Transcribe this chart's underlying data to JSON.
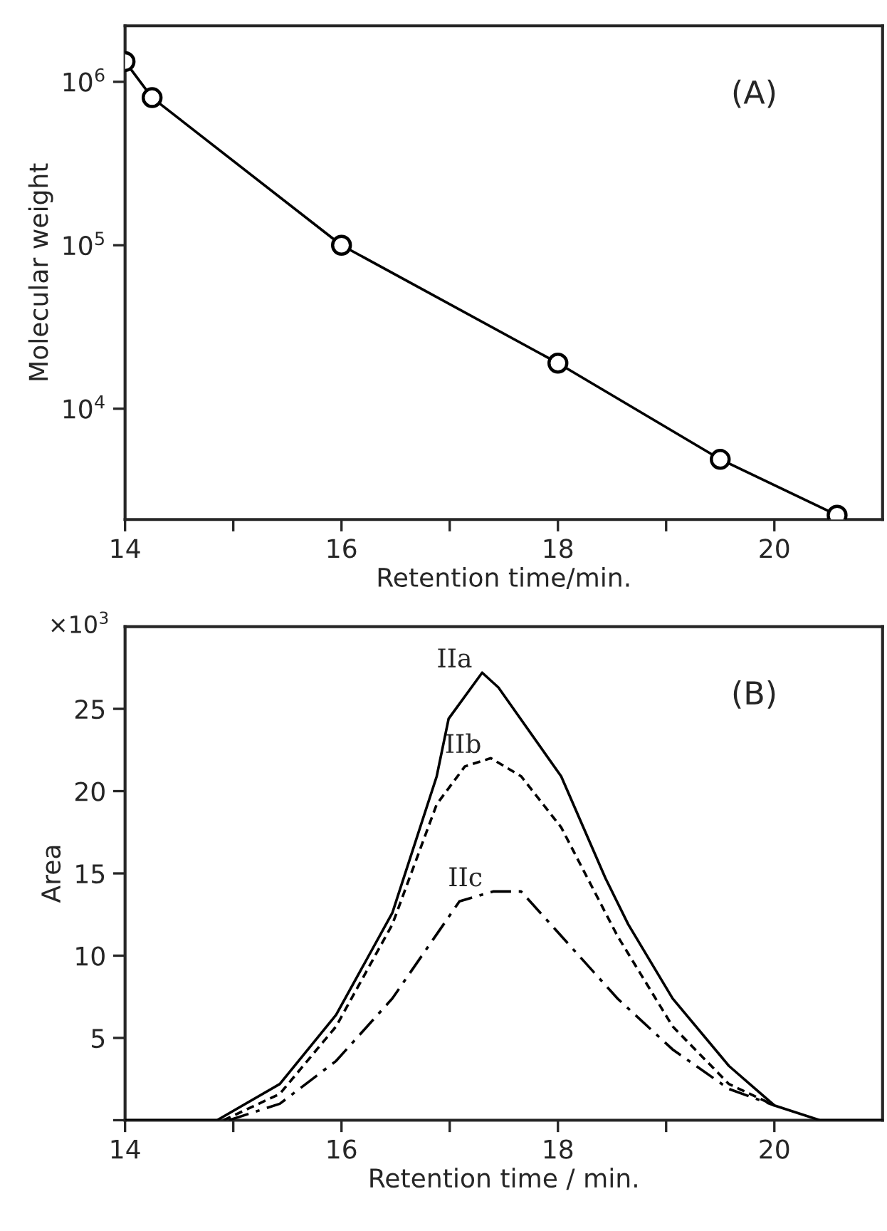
{
  "chart_data": [
    {
      "type": "line",
      "xlabel": "Retention time/min.",
      "ylabel": "Molecular weight",
      "log": "y",
      "xlim": [
        14,
        21
      ],
      "ylim": [
        2100,
        2200000
      ],
      "xticks": [
        14,
        {
          "value": 15,
          "label": null
        },
        16,
        {
          "value": 17,
          "label": null
        },
        18,
        {
          "value": 19,
          "label": null
        },
        20
      ],
      "yticks": [
        {
          "value": 10000,
          "label": "10$^{4}$"
        },
        {
          "value": 100000,
          "label": "10$^{5}$"
        },
        {
          "value": 1000000,
          "label": "10$^{6}$"
        }
      ],
      "grid": false,
      "legend": false,
      "marker": "circle",
      "line_style": "solid",
      "series": [
        {
          "color": "#000000",
          "x": [
            14.0,
            14.25,
            16.0,
            18.0,
            19.5,
            20.58
          ],
          "values": [
            1330000,
            800000,
            100000,
            19000,
            4900,
            2230
          ]
        }
      ],
      "annotations": [
        "(A)"
      ]
    },
    {
      "type": "line",
      "xlabel": "Retention time / min.",
      "ylabel": "Area",
      "xlim": [
        14,
        21
      ],
      "ylim": [
        0,
        30
      ],
      "xticks": [
        14,
        {
          "value": 15,
          "label": null
        },
        16,
        {
          "value": 17,
          "label": null
        },
        18,
        {
          "value": 19,
          "label": null
        },
        20
      ],
      "yticks": [
        {
          "value": 0,
          "label": null
        },
        5,
        10,
        15,
        20,
        25
      ],
      "grid": false,
      "legend": false,
      "marker": "none",
      "series": [
        {
          "name": "IIa",
          "color": "#000000",
          "line_style": "solid",
          "x": [
            14.0,
            14.85,
            15.43,
            15.95,
            16.47,
            16.88,
            16.99,
            17.3,
            17.45,
            18.03,
            18.44,
            18.65,
            19.06,
            19.58,
            20.0,
            20.42,
            21.0
          ],
          "values": [
            0,
            0,
            2.2,
            6.4,
            12.6,
            20.9,
            24.4,
            27.2,
            26.3,
            20.9,
            14.7,
            11.9,
            7.4,
            3.3,
            0.9,
            0,
            0
          ]
        },
        {
          "name": "IIb",
          "color": "#000000",
          "line_style": "dashed",
          "x": [
            14.91,
            15.43,
            15.95,
            16.47,
            16.88,
            17.14,
            17.38,
            17.66,
            18.03,
            18.55,
            19.06,
            19.58,
            20.0
          ],
          "values": [
            0,
            1.6,
            5.7,
            11.9,
            19.2,
            21.5,
            22.0,
            20.9,
            17.8,
            11.2,
            5.7,
            2.2,
            0.9
          ]
        },
        {
          "name": "IIc",
          "color": "#000000",
          "line_style": "dashdot",
          "x": [
            14.96,
            15.43,
            15.95,
            16.47,
            17.09,
            17.4,
            17.66,
            18.03,
            18.55,
            19.06,
            19.58,
            20.0
          ],
          "values": [
            0,
            1.0,
            3.6,
            7.4,
            13.3,
            13.9,
            13.9,
            11.2,
            7.4,
            4.3,
            1.9,
            0.9
          ]
        }
      ],
      "annotations": [
        "(B)",
        "×10$^{3}$"
      ]
    }
  ]
}
